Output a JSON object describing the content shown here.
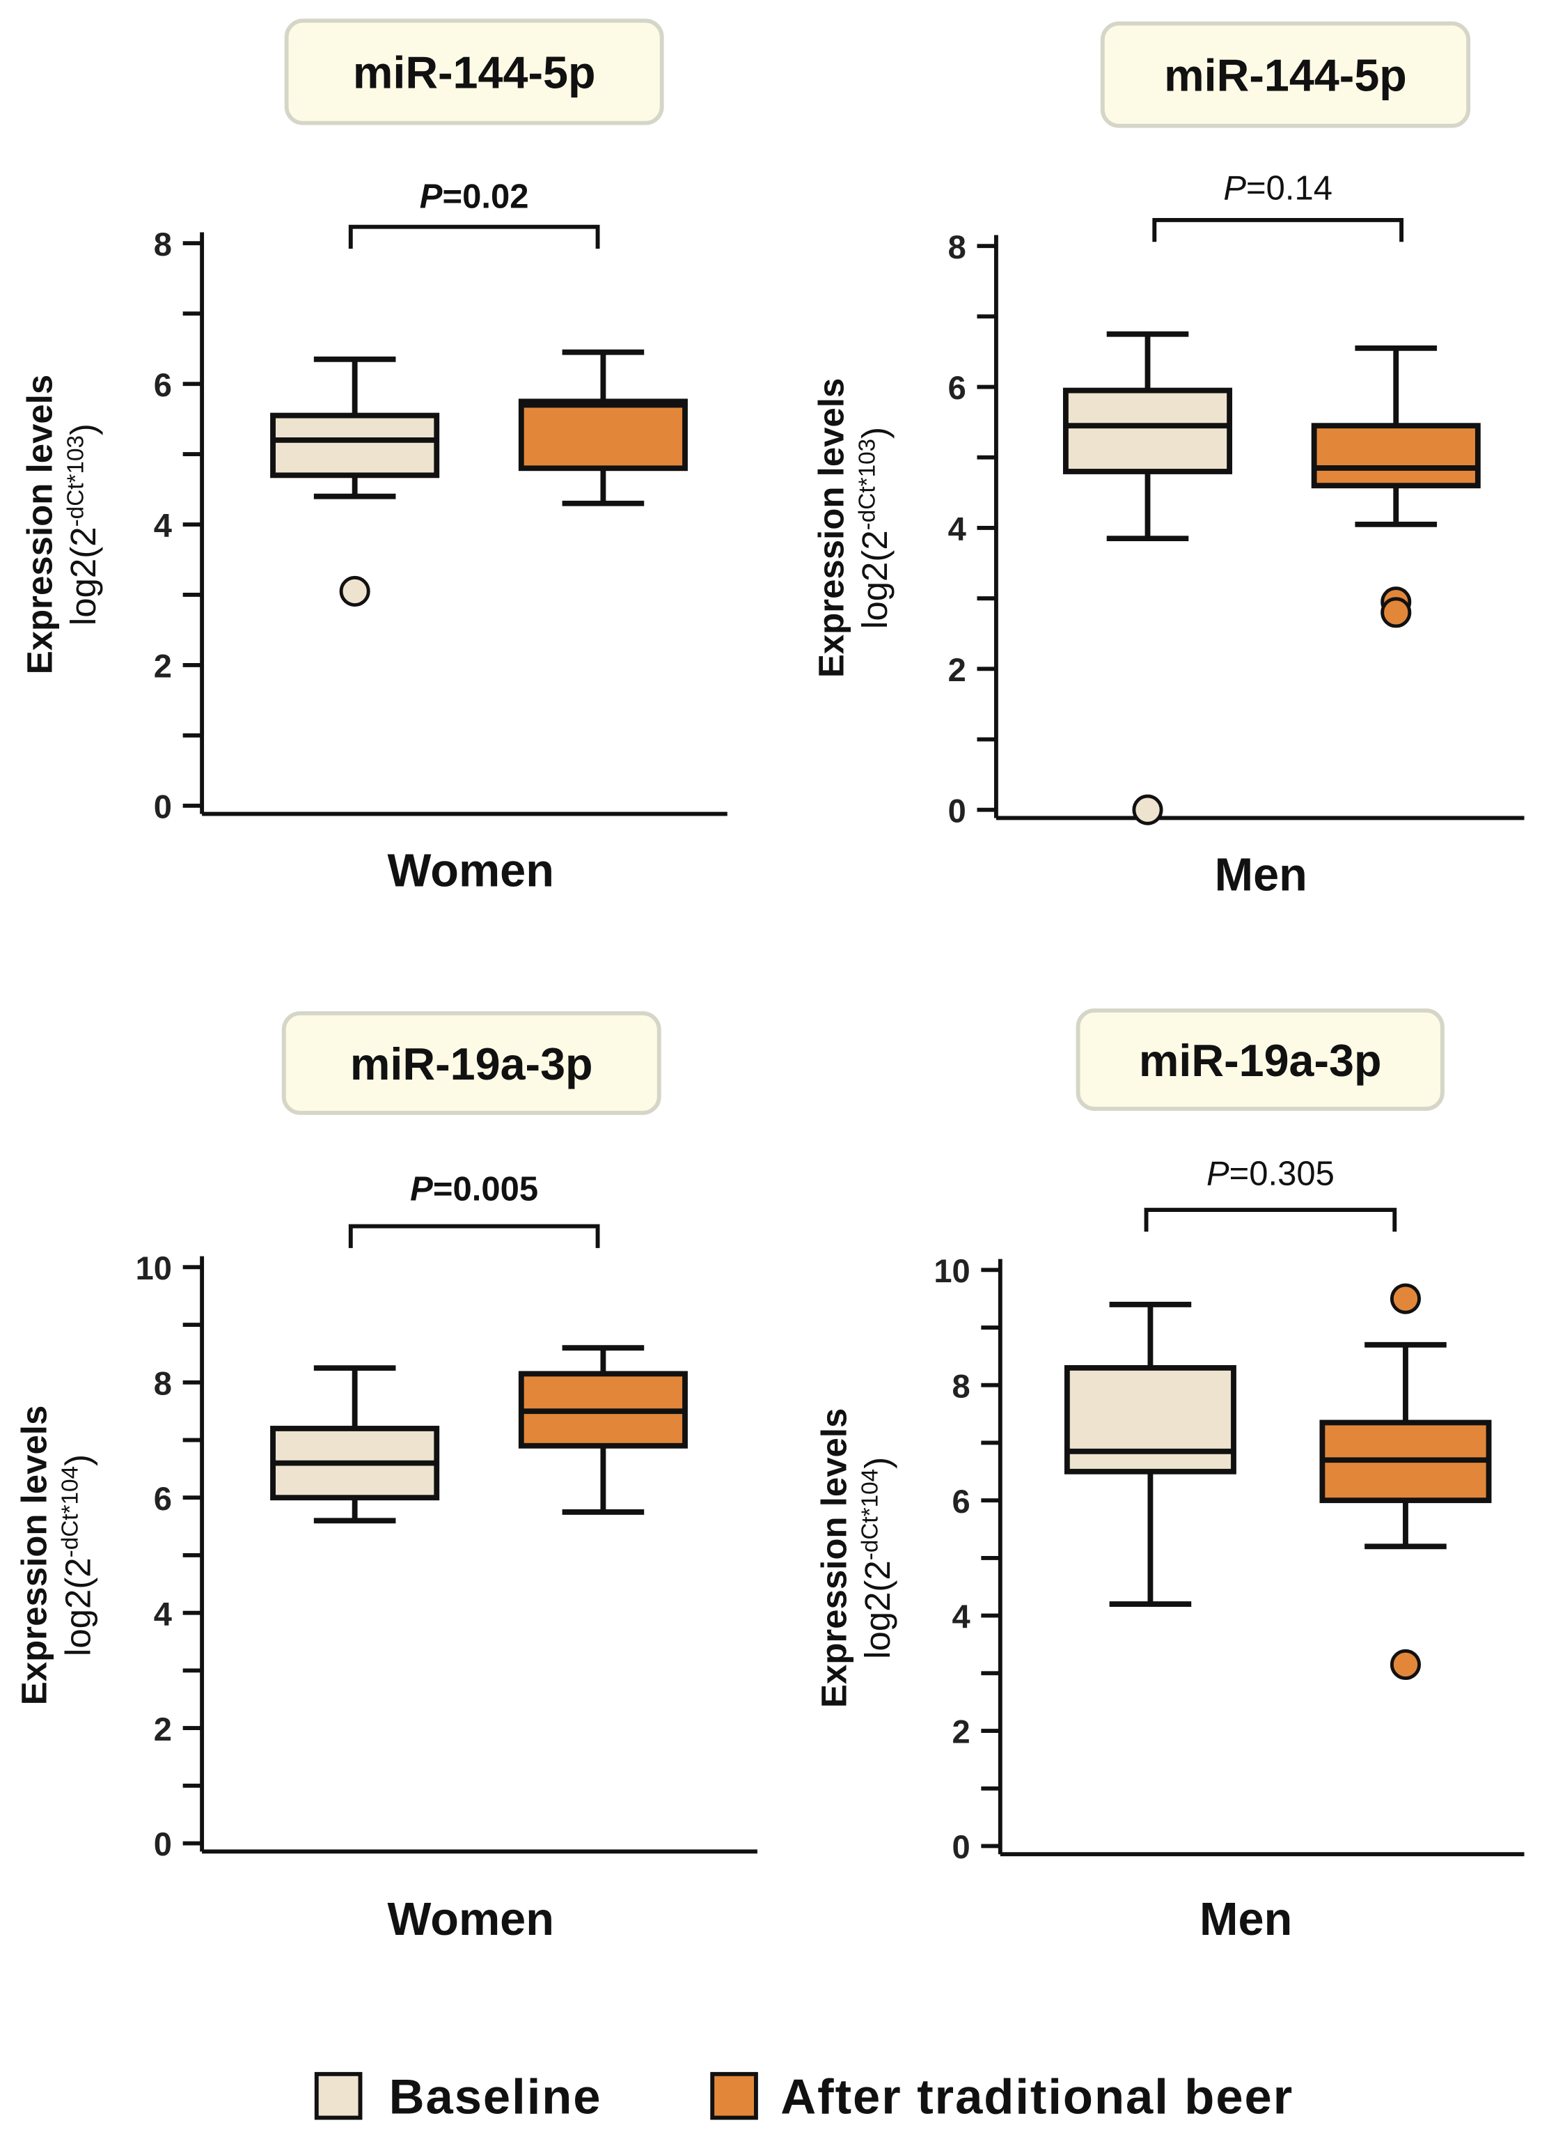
{
  "colors": {
    "baseline": "#ede3cf",
    "after": "#e2873a",
    "title_box": "#fdfbe6",
    "title_border": "#d6d6c8",
    "line": "#111111"
  },
  "legend": {
    "items": [
      {
        "label": "Baseline",
        "color": "#ede3cf"
      },
      {
        "label": "After traditional beer",
        "color": "#e2873a"
      }
    ],
    "placement": "bottom-center"
  },
  "chart_data": [
    {
      "type": "box",
      "title": "miR-144-5p",
      "xlabel": "Women",
      "p_prefix": "P",
      "p_value": "=0.02",
      "p_bold": true,
      "ylabel": [
        "Expression levels",
        "log2(2",
        "-dCt*10",
        "3",
        ")"
      ],
      "ylim": [
        0,
        8
      ],
      "yticks": [
        "0",
        "2",
        "4",
        "6",
        "8"
      ],
      "ytick_values": [
        0,
        2,
        4,
        6,
        8
      ],
      "minor_step": 1,
      "series": [
        {
          "name": "Baseline",
          "min": 4.4,
          "q1": 4.7,
          "median": 5.2,
          "q3": 5.55,
          "max": 6.35,
          "outliers": [
            3.05
          ]
        },
        {
          "name": "After traditional beer",
          "min": 4.3,
          "q1": 4.8,
          "median": 5.7,
          "q3": 5.75,
          "max": 6.45,
          "outliers": []
        }
      ]
    },
    {
      "type": "box",
      "title": "miR-144-5p",
      "xlabel": "Men",
      "p_prefix": "P",
      "p_value": "=0.14",
      "p_bold": false,
      "ylabel": [
        "Expression levels",
        "log2(2",
        "-dCt*10",
        "3",
        ")"
      ],
      "ylim": [
        0,
        8
      ],
      "yticks": [
        "0",
        "2",
        "4",
        "6",
        "8"
      ],
      "ytick_values": [
        0,
        2,
        4,
        6,
        8
      ],
      "minor_step": 1,
      "series": [
        {
          "name": "Baseline",
          "min": 3.85,
          "q1": 4.8,
          "median": 5.45,
          "q3": 5.95,
          "max": 6.75,
          "outliers": [
            0
          ]
        },
        {
          "name": "After traditional beer",
          "min": 4.05,
          "q1": 4.6,
          "median": 4.85,
          "q3": 5.45,
          "max": 6.55,
          "outliers": [
            2.95,
            2.8
          ]
        }
      ]
    },
    {
      "type": "box",
      "title": "miR-19a-3p",
      "xlabel": "Women",
      "p_prefix": "P",
      "p_value": "=0.005",
      "p_bold": true,
      "ylabel": [
        "Expression levels",
        "log2(2",
        "-dCt*10",
        "4",
        ")"
      ],
      "ylim": [
        0,
        10
      ],
      "yticks": [
        "0",
        "2",
        "4",
        "6",
        "8",
        "10"
      ],
      "ytick_values": [
        0,
        2,
        4,
        6,
        8,
        10
      ],
      "minor_step": 1,
      "series": [
        {
          "name": "Baseline",
          "min": 5.6,
          "q1": 6.0,
          "median": 6.6,
          "q3": 7.2,
          "max": 8.25,
          "outliers": []
        },
        {
          "name": "After traditional beer",
          "min": 5.75,
          "q1": 6.9,
          "median": 7.5,
          "q3": 8.15,
          "max": 8.6,
          "outliers": []
        }
      ]
    },
    {
      "type": "box",
      "title": "miR-19a-3p",
      "xlabel": "Men",
      "p_prefix": "P",
      "p_value": "=0.305",
      "p_bold": false,
      "ylabel": [
        "Expression levels",
        "log2(2",
        "-dCt*10",
        "4",
        ")"
      ],
      "ylim": [
        0,
        10
      ],
      "yticks": [
        "0",
        "2",
        "4",
        "6",
        "8",
        "10"
      ],
      "ytick_values": [
        0,
        2,
        4,
        6,
        8,
        10
      ],
      "minor_step": 1,
      "series": [
        {
          "name": "Baseline",
          "min": 4.2,
          "q1": 6.5,
          "median": 6.85,
          "q3": 8.3,
          "max": 9.4,
          "outliers": []
        },
        {
          "name": "After traditional beer",
          "min": 5.2,
          "q1": 6.0,
          "median": 6.7,
          "q3": 7.35,
          "max": 8.7,
          "outliers": [
            9.5,
            3.15
          ]
        }
      ]
    }
  ]
}
